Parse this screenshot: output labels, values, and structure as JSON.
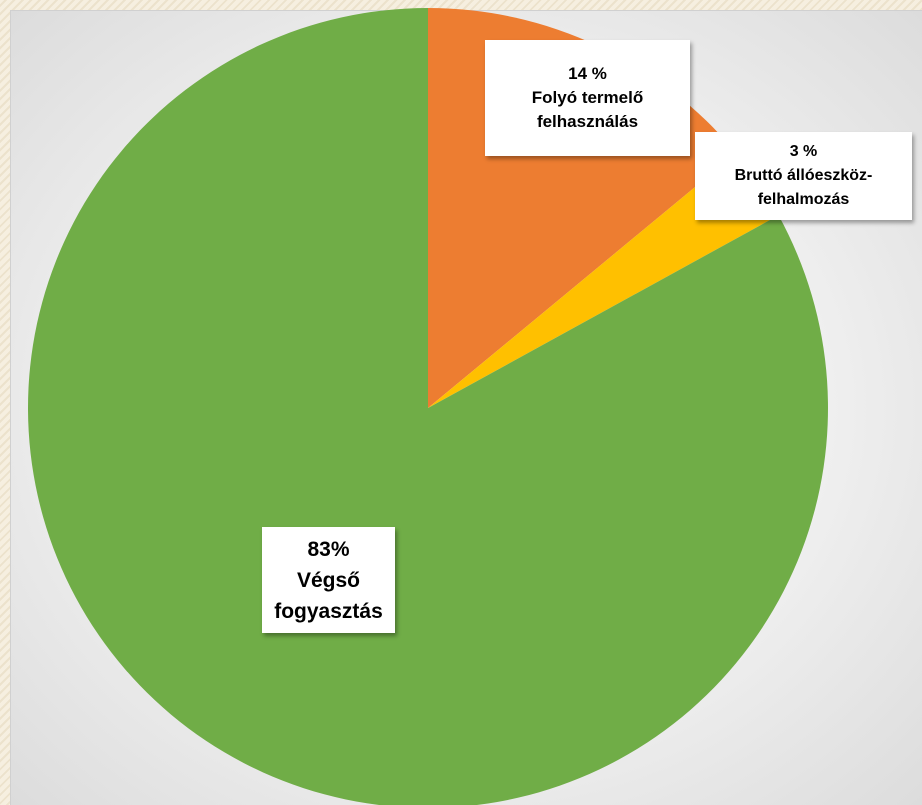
{
  "chart_data": {
    "type": "pie",
    "start_angle_deg": 0,
    "direction": "clockwise",
    "slices": [
      {
        "value": 14,
        "pct_label": "14 %",
        "name": "Folyó termelő felhasználás",
        "name_lines": [
          "Folyó termelő",
          "felhasználás"
        ],
        "color": "#ED7D31"
      },
      {
        "value": 3,
        "pct_label": "3 %",
        "name": "Bruttó állóeszköz-felhalmozás",
        "name_lines": [
          "Bruttó állóeszköz-",
          "felhalmozás"
        ],
        "color": "#FFC000"
      },
      {
        "value": 83,
        "pct_label": "83%",
        "name": "Végső fogyasztás",
        "name_lines": [
          "Végső",
          "fogyasztás"
        ],
        "color": "#70AD47"
      }
    ],
    "legend": "none",
    "data_labels": true
  }
}
